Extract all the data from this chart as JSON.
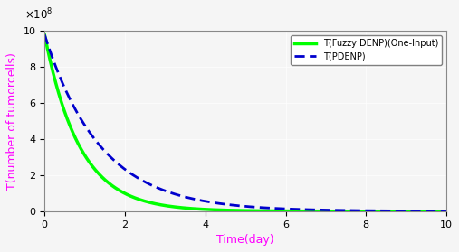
{
  "title": "",
  "xlabel": "Time(day)",
  "ylabel": "T(number of tumorcells)",
  "xlabel_color": "#FF00FF",
  "ylabel_color": "#FF00FF",
  "xlim": [
    0,
    10
  ],
  "ylim": [
    0,
    1000000000.0
  ],
  "yticks": [
    0,
    200000000.0,
    400000000.0,
    600000000.0,
    800000000.0,
    1000000000.0
  ],
  "xticks": [
    0,
    2,
    4,
    6,
    8,
    10
  ],
  "legend_labels": [
    "T(Fuzzy DENP)(One-Input)",
    "T(PDENP)"
  ],
  "line1_color": "#00FF00",
  "line2_color": "#0000CD",
  "line1_decay": 1.15,
  "line2_decay": 0.72,
  "T0": 980000000.0,
  "background_color": "#F0F0F0",
  "legend_fontsize": 7,
  "axis_fontsize": 9
}
